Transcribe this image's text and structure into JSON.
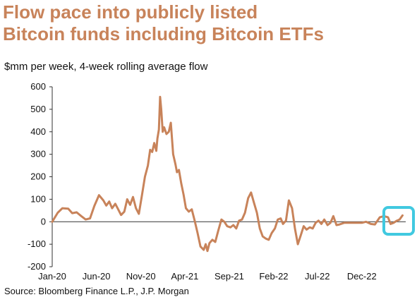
{
  "chart_data": {
    "type": "line",
    "title": [
      "Flow pace into publicly listed",
      "Bitcoin funds including Bitcoin ETFs"
    ],
    "subtitle": "$mm per week, 4-week rolling average flow",
    "source": "Source: Bloomberg Finance L.P., J.P. Morgan",
    "xlabel": "",
    "ylabel": "",
    "ylim": [
      -200,
      600
    ],
    "yticks": [
      -200,
      -100,
      0,
      100,
      200,
      300,
      400,
      500,
      600
    ],
    "xlim": [
      "2020-01",
      "2023-05"
    ],
    "xticks": [
      {
        "label": "Jan-20",
        "date": "2020-01"
      },
      {
        "label": "Jun-20",
        "date": "2020-06"
      },
      {
        "label": "Nov-20",
        "date": "2020-11"
      },
      {
        "label": "Apr-21",
        "date": "2021-04"
      },
      {
        "label": "Sep-21",
        "date": "2021-09"
      },
      {
        "label": "Feb-22",
        "date": "2022-02"
      },
      {
        "label": "Jul-22",
        "date": "2022-07"
      },
      {
        "label": "Dec-22",
        "date": "2022-12"
      }
    ],
    "series": [
      {
        "color": "#c8835a",
        "points": [
          [
            "2020-01-01",
            0
          ],
          [
            "2020-01-20",
            40
          ],
          [
            "2020-02-05",
            60
          ],
          [
            "2020-02-25",
            58
          ],
          [
            "2020-03-10",
            38
          ],
          [
            "2020-03-25",
            42
          ],
          [
            "2020-04-10",
            25
          ],
          [
            "2020-04-25",
            10
          ],
          [
            "2020-05-10",
            15
          ],
          [
            "2020-05-25",
            70
          ],
          [
            "2020-06-10",
            118
          ],
          [
            "2020-06-25",
            95
          ],
          [
            "2020-07-05",
            72
          ],
          [
            "2020-07-15",
            90
          ],
          [
            "2020-07-25",
            60
          ],
          [
            "2020-08-05",
            80
          ],
          [
            "2020-08-15",
            55
          ],
          [
            "2020-08-25",
            30
          ],
          [
            "2020-09-05",
            45
          ],
          [
            "2020-09-15",
            100
          ],
          [
            "2020-09-25",
            75
          ],
          [
            "2020-10-05",
            110
          ],
          [
            "2020-10-15",
            60
          ],
          [
            "2020-10-25",
            35
          ],
          [
            "2020-11-05",
            120
          ],
          [
            "2020-11-15",
            200
          ],
          [
            "2020-11-25",
            250
          ],
          [
            "2020-12-03",
            320
          ],
          [
            "2020-12-10",
            310
          ],
          [
            "2020-12-17",
            350
          ],
          [
            "2020-12-24",
            315
          ],
          [
            "2020-12-28",
            370
          ],
          [
            "2021-01-02",
            410
          ],
          [
            "2021-01-06",
            555
          ],
          [
            "2021-01-10",
            500
          ],
          [
            "2021-01-15",
            400
          ],
          [
            "2021-01-20",
            420
          ],
          [
            "2021-01-28",
            390
          ],
          [
            "2021-02-05",
            400
          ],
          [
            "2021-02-12",
            440
          ],
          [
            "2021-02-20",
            300
          ],
          [
            "2021-02-28",
            255
          ],
          [
            "2021-03-05",
            220
          ],
          [
            "2021-03-12",
            230
          ],
          [
            "2021-03-20",
            170
          ],
          [
            "2021-03-28",
            120
          ],
          [
            "2021-04-05",
            60
          ],
          [
            "2021-04-15",
            45
          ],
          [
            "2021-04-25",
            55
          ],
          [
            "2021-05-05",
            5
          ],
          [
            "2021-05-15",
            -50
          ],
          [
            "2021-05-25",
            -110
          ],
          [
            "2021-06-05",
            -125
          ],
          [
            "2021-06-12",
            -100
          ],
          [
            "2021-06-18",
            -130
          ],
          [
            "2021-06-25",
            -95
          ],
          [
            "2021-07-05",
            -80
          ],
          [
            "2021-07-15",
            -90
          ],
          [
            "2021-07-25",
            -40
          ],
          [
            "2021-08-05",
            10
          ],
          [
            "2021-08-15",
            0
          ],
          [
            "2021-08-25",
            -20
          ],
          [
            "2021-09-05",
            -25
          ],
          [
            "2021-09-15",
            -15
          ],
          [
            "2021-09-25",
            -30
          ],
          [
            "2021-10-05",
            5
          ],
          [
            "2021-10-15",
            10
          ],
          [
            "2021-10-25",
            40
          ],
          [
            "2021-11-05",
            105
          ],
          [
            "2021-11-15",
            130
          ],
          [
            "2021-11-25",
            85
          ],
          [
            "2021-12-05",
            40
          ],
          [
            "2021-12-15",
            -30
          ],
          [
            "2021-12-25",
            -65
          ],
          [
            "2022-01-05",
            -75
          ],
          [
            "2022-01-15",
            -80
          ],
          [
            "2022-01-25",
            -50
          ],
          [
            "2022-02-05",
            -30
          ],
          [
            "2022-02-15",
            10
          ],
          [
            "2022-02-25",
            15
          ],
          [
            "2022-03-05",
            -10
          ],
          [
            "2022-03-15",
            5
          ],
          [
            "2022-03-25",
            95
          ],
          [
            "2022-04-05",
            60
          ],
          [
            "2022-04-15",
            -30
          ],
          [
            "2022-04-25",
            -100
          ],
          [
            "2022-05-05",
            -60
          ],
          [
            "2022-05-15",
            -20
          ],
          [
            "2022-05-25",
            -35
          ],
          [
            "2022-06-05",
            -25
          ],
          [
            "2022-06-15",
            -30
          ],
          [
            "2022-06-25",
            -5
          ],
          [
            "2022-07-05",
            5
          ],
          [
            "2022-07-15",
            -10
          ],
          [
            "2022-07-25",
            10
          ],
          [
            "2022-08-05",
            -15
          ],
          [
            "2022-08-15",
            -5
          ],
          [
            "2022-08-25",
            25
          ],
          [
            "2022-09-05",
            -15
          ],
          [
            "2022-09-15",
            -12
          ],
          [
            "2022-10-01",
            -5
          ],
          [
            "2022-11-01",
            -5
          ],
          [
            "2022-12-01",
            -5
          ],
          [
            "2022-12-15",
            0
          ],
          [
            "2023-01-01",
            -10
          ],
          [
            "2023-01-15",
            -12
          ],
          [
            "2023-02-01",
            20
          ],
          [
            "2023-02-15",
            25
          ],
          [
            "2023-03-01",
            20
          ],
          [
            "2023-03-10",
            -10
          ],
          [
            "2023-03-20",
            -5
          ],
          [
            "2023-04-01",
            5
          ],
          [
            "2023-04-10",
            10
          ],
          [
            "2023-04-20",
            28
          ]
        ]
      }
    ],
    "highlight_box_color": "#41c9e0"
  }
}
